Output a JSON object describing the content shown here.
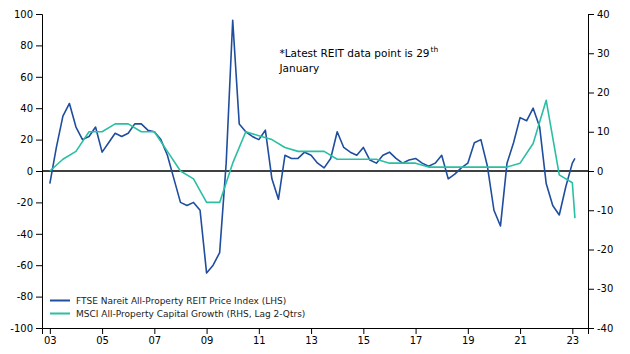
{
  "chart_data": {
    "type": "line",
    "xlim": [
      2002.7,
      2023.6
    ],
    "xticks": [
      {
        "value": 2003,
        "label": "03"
      },
      {
        "value": 2005,
        "label": "05"
      },
      {
        "value": 2007,
        "label": "07"
      },
      {
        "value": 2009,
        "label": "09"
      },
      {
        "value": 2011,
        "label": "11"
      },
      {
        "value": 2013,
        "label": "13"
      },
      {
        "value": 2015,
        "label": "15"
      },
      {
        "value": 2017,
        "label": "17"
      },
      {
        "value": 2019,
        "label": "19"
      },
      {
        "value": 2021,
        "label": "21"
      },
      {
        "value": 2023,
        "label": "23"
      }
    ],
    "ylim": [
      -100,
      100
    ],
    "yticks": [
      -100,
      -80,
      -60,
      -40,
      -20,
      0,
      20,
      40,
      60,
      80,
      100
    ],
    "y2lim": [
      -40,
      40
    ],
    "y2ticks": [
      -40,
      -30,
      -20,
      -10,
      0,
      10,
      20,
      30,
      40
    ],
    "legend": "lower left",
    "annotations": [
      "*Latest REIT data point is 29",
      "th",
      "January"
    ],
    "series": [
      {
        "name": "FTSE Nareit All-Property REIT Price Index (LHS)",
        "color": "#1f4e9e",
        "x": [
          2003.0,
          2003.25,
          2003.5,
          2003.75,
          2004.0,
          2004.25,
          2004.5,
          2004.75,
          2005.0,
          2005.25,
          2005.5,
          2005.75,
          2006.0,
          2006.25,
          2006.5,
          2006.75,
          2007.0,
          2007.25,
          2007.5,
          2007.75,
          2008.0,
          2008.25,
          2008.5,
          2008.75,
          2009.0,
          2009.25,
          2009.5,
          2009.75,
          2010.0,
          2010.25,
          2010.5,
          2010.75,
          2011.0,
          2011.25,
          2011.5,
          2011.75,
          2012.0,
          2012.25,
          2012.5,
          2012.75,
          2013.0,
          2013.25,
          2013.5,
          2013.75,
          2014.0,
          2014.25,
          2014.5,
          2014.75,
          2015.0,
          2015.25,
          2015.5,
          2015.75,
          2016.0,
          2016.25,
          2016.5,
          2016.75,
          2017.0,
          2017.25,
          2017.5,
          2017.75,
          2018.0,
          2018.25,
          2018.5,
          2018.75,
          2019.0,
          2019.25,
          2019.5,
          2019.75,
          2020.0,
          2020.25,
          2020.5,
          2020.75,
          2021.0,
          2021.25,
          2021.5,
          2021.75,
          2022.0,
          2022.25,
          2022.5,
          2022.75,
          2023.0,
          2023.1
        ],
        "values": [
          -8,
          15,
          35,
          43,
          28,
          20,
          22,
          28,
          12,
          18,
          24,
          22,
          24,
          30,
          30,
          26,
          25,
          20,
          10,
          -5,
          -20,
          -22,
          -20,
          -25,
          -65,
          -60,
          -52,
          5,
          96,
          30,
          25,
          22,
          20,
          26,
          -5,
          -18,
          10,
          8,
          8,
          12,
          10,
          5,
          2,
          8,
          25,
          15,
          12,
          10,
          15,
          7,
          5,
          10,
          12,
          8,
          5,
          7,
          8,
          5,
          3,
          5,
          10,
          -5,
          -2,
          2,
          5,
          18,
          20,
          3,
          -25,
          -35,
          5,
          18,
          34,
          32,
          40,
          28,
          -8,
          -22,
          -28,
          -10,
          5,
          8
        ]
      },
      {
        "name": "MSCI All-Property Capital Growth (RHS, Lag 2-Qtrs)",
        "color": "#2abfa3",
        "axis": "y2",
        "x": [
          2003.0,
          2003.5,
          2004.0,
          2004.5,
          2005.0,
          2005.5,
          2006.0,
          2006.5,
          2007.0,
          2007.5,
          2008.0,
          2008.5,
          2009.0,
          2009.5,
          2010.0,
          2010.5,
          2011.0,
          2011.5,
          2012.0,
          2012.5,
          2013.0,
          2013.5,
          2014.0,
          2014.5,
          2015.0,
          2015.5,
          2016.0,
          2016.5,
          2017.0,
          2017.5,
          2018.0,
          2018.5,
          2019.0,
          2019.5,
          2020.0,
          2020.5,
          2021.0,
          2021.5,
          2022.0,
          2022.5,
          2023.0,
          2023.1
        ],
        "values": [
          0,
          3,
          5,
          10,
          10,
          12,
          12,
          10,
          10,
          5,
          0,
          -2,
          -8,
          -8,
          2,
          10,
          9,
          8,
          6,
          5,
          5,
          5,
          3,
          3,
          3,
          3,
          2,
          2,
          2,
          1,
          1,
          1,
          1,
          1,
          1,
          1,
          2,
          7,
          18,
          -1,
          -3,
          -12
        ]
      }
    ]
  }
}
